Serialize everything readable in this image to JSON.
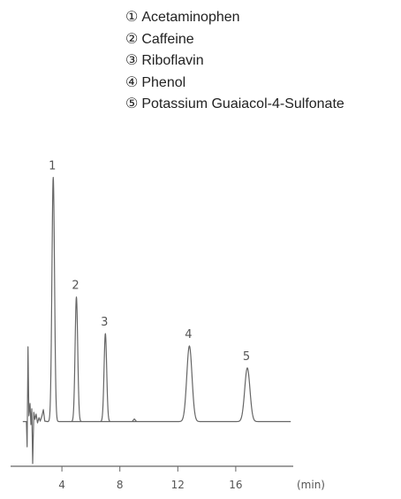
{
  "legend": {
    "items": [
      {
        "num": "①",
        "name": "Acetaminophen"
      },
      {
        "num": "②",
        "name": "Caffeine"
      },
      {
        "num": "③",
        "name": "Riboflavin"
      },
      {
        "num": "④",
        "name": "Phenol"
      },
      {
        "num": "⑤",
        "name": "Potassium Guaiacol-4-Sulfonate"
      }
    ]
  },
  "chart_data": {
    "type": "line",
    "title": "",
    "xlabel": "(min)",
    "ylabel": "",
    "xlim": [
      0,
      18
    ],
    "x_ticks": [
      4,
      8,
      12,
      16
    ],
    "grid": false,
    "trace_color": "#666666",
    "peaks": [
      {
        "label": "1",
        "rt": 3.4,
        "height": 1.0
      },
      {
        "label": "2",
        "rt": 5.0,
        "height": 0.51
      },
      {
        "label": "3",
        "rt": 7.0,
        "height": 0.36
      },
      {
        "label": "4",
        "rt": 12.8,
        "height": 0.31
      },
      {
        "label": "5",
        "rt": 16.8,
        "height": 0.22
      }
    ]
  }
}
